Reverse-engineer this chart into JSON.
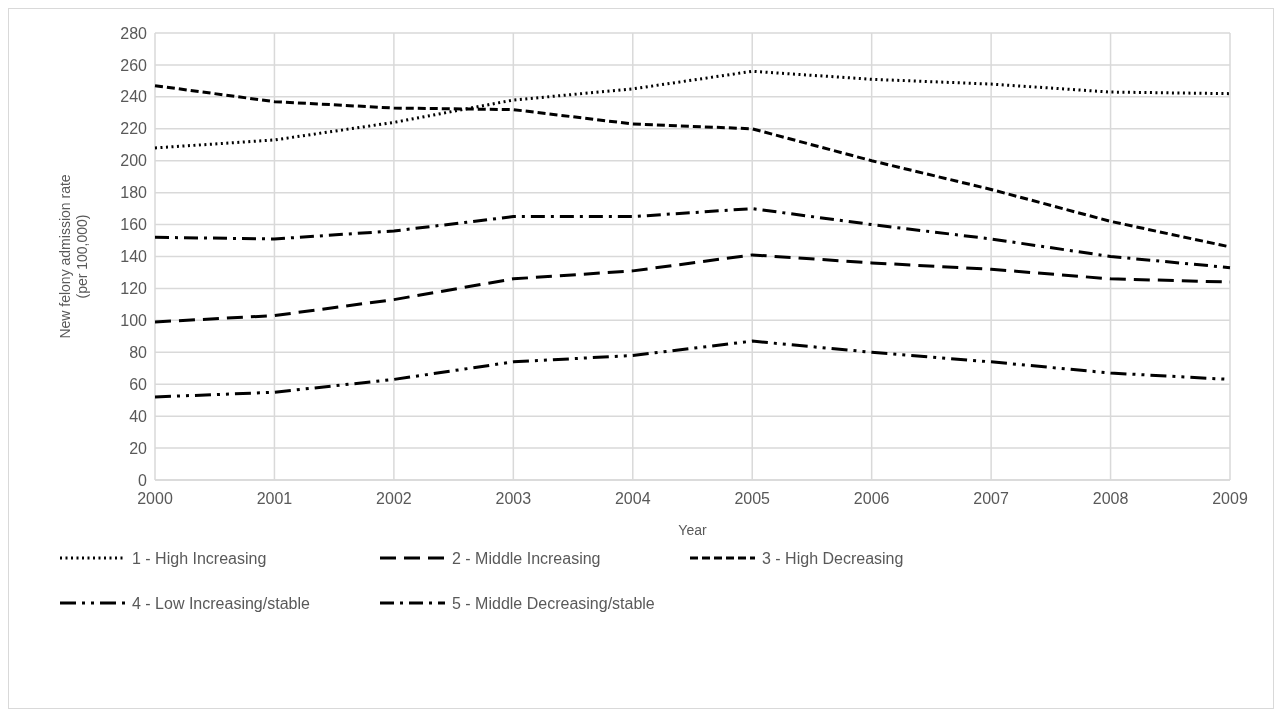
{
  "chart_data": {
    "type": "line",
    "xlabel": "Year",
    "ylabel": "New felony admission rate\n(per 100,000)",
    "categories": [
      "2000",
      "2001",
      "2002",
      "2003",
      "2004",
      "2005",
      "2006",
      "2007",
      "2008",
      "2009"
    ],
    "ylim": [
      0,
      280
    ],
    "yticks": [
      0,
      20,
      40,
      60,
      80,
      100,
      120,
      140,
      160,
      180,
      200,
      220,
      240,
      260,
      280
    ],
    "grid": true,
    "legend": "bottom",
    "marker": "none",
    "series": [
      {
        "name": "1 - High Increasing",
        "color": "#000000",
        "line_style": "dotted",
        "values": [
          208,
          213,
          224,
          238,
          245,
          256,
          251,
          248,
          243,
          242
        ]
      },
      {
        "name": "2 - Middle Increasing",
        "color": "#000000",
        "line_style": "longdash",
        "values": [
          99,
          103,
          113,
          126,
          131,
          141,
          136,
          132,
          126,
          124
        ]
      },
      {
        "name": "3 - High Decreasing",
        "color": "#000000",
        "line_style": "dashed",
        "values": [
          247,
          237,
          233,
          232,
          223,
          220,
          200,
          182,
          162,
          146
        ]
      },
      {
        "name": "4 - Low Increasing/stable",
        "color": "#000000",
        "line_style": "longdashdotdot",
        "values": [
          52,
          55,
          63,
          74,
          78,
          87,
          80,
          74,
          67,
          63
        ]
      },
      {
        "name": "5 - Middle Decreasing/stable",
        "color": "#000000",
        "line_style": "dashdot",
        "values": [
          152,
          151,
          156,
          165,
          165,
          170,
          160,
          151,
          140,
          133
        ]
      }
    ]
  }
}
